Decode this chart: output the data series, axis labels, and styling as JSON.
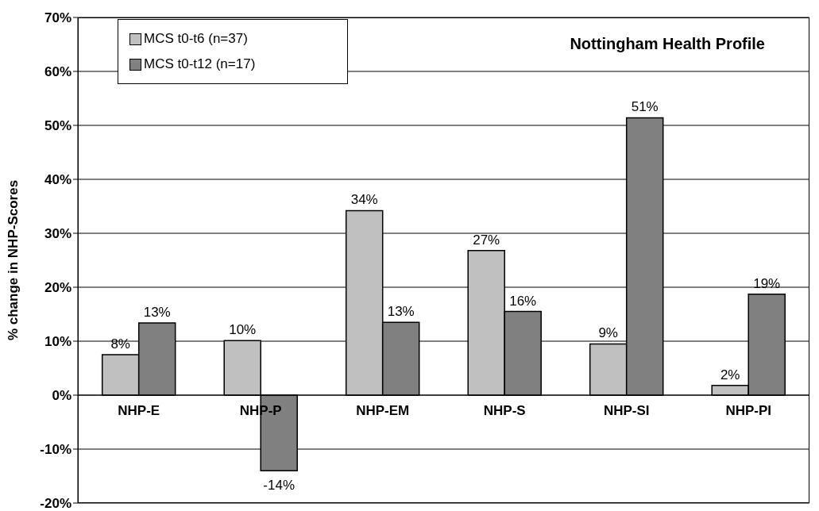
{
  "chart_data": {
    "type": "bar",
    "title": "Nottingham Health Profile",
    "ylabel": "% change in NHP-Scores",
    "categories": [
      "NHP-E",
      "NHP-P",
      "NHP-EM",
      "NHP-S",
      "NHP-SI",
      "NHP-PI"
    ],
    "series": [
      {
        "name": "MCS t0-t6 (n=37)",
        "color": "#c0c0c0",
        "values": [
          7.5,
          10.1,
          34.2,
          26.8,
          9.5,
          1.8
        ],
        "value_labels": [
          "8%",
          "10%",
          "34%",
          "27%",
          "9%",
          "2%"
        ]
      },
      {
        "name": "MCS t0-t12 (n=17)",
        "color": "#808080",
        "values": [
          13.4,
          -14,
          13.5,
          15.5,
          51.4,
          18.7
        ],
        "value_labels": [
          "13%",
          "-14%",
          "13%",
          "16%",
          "51%",
          "19%"
        ]
      }
    ],
    "ylim": [
      -20,
      70
    ],
    "yticks": [
      {
        "value": -20,
        "label": "-20%"
      },
      {
        "value": -10,
        "label": "-10%"
      },
      {
        "value": 0,
        "label": "0%"
      },
      {
        "value": 10,
        "label": "10%"
      },
      {
        "value": 20,
        "label": "20%"
      },
      {
        "value": 30,
        "label": "30%"
      },
      {
        "value": 40,
        "label": "40%"
      },
      {
        "value": 50,
        "label": "50%"
      },
      {
        "value": 60,
        "label": "60%"
      },
      {
        "value": 70,
        "label": "70%"
      }
    ],
    "grid": "y",
    "legend": "top left"
  }
}
